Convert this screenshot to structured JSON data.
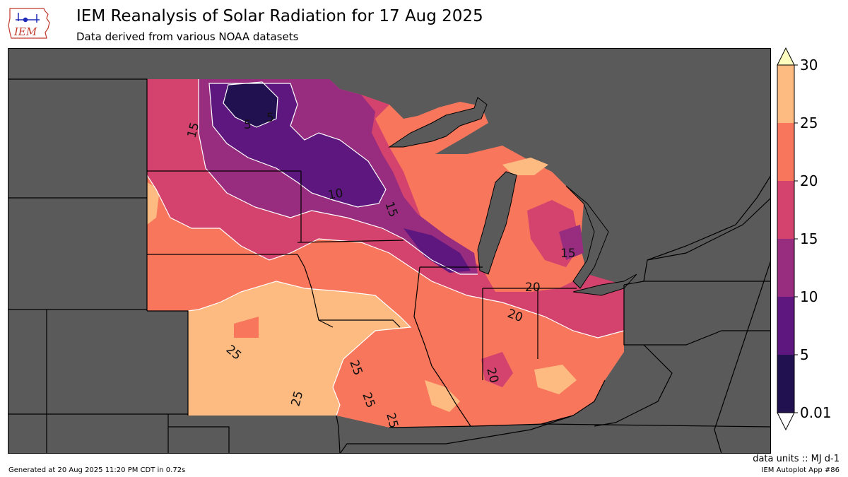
{
  "header": {
    "logo_text": "IEM",
    "title": "IEM Reanalysis of Solar Radiation for 17 Aug 2025",
    "subtitle": "Data derived from various NOAA datasets"
  },
  "map": {
    "contour_labels": [
      "5",
      "5",
      "10",
      "15",
      "15",
      "15",
      "20",
      "20",
      "20",
      "25",
      "25",
      "25",
      "25",
      "25"
    ],
    "colors": {
      "background": "#5a5a5a",
      "band_0_5": "#221150",
      "band_5_10": "#5e177f",
      "band_10_15": "#982d80",
      "band_15_20": "#d3436e",
      "band_20_25": "#f8765c",
      "band_25_30": "#febb81",
      "band_over_30": "#fcfdbf",
      "contour_line": "#ffffff",
      "boundary_line": "#000000"
    }
  },
  "colorbar": {
    "ticks": [
      "30",
      "25",
      "20",
      "15",
      "10",
      "5",
      "0.01"
    ],
    "units_label": "data units :: MJ d-1"
  },
  "footer": {
    "generated": "Generated at 20 Aug 2025 11:20 PM CDT in 0.72s",
    "app": "IEM Autoplot App #86"
  }
}
